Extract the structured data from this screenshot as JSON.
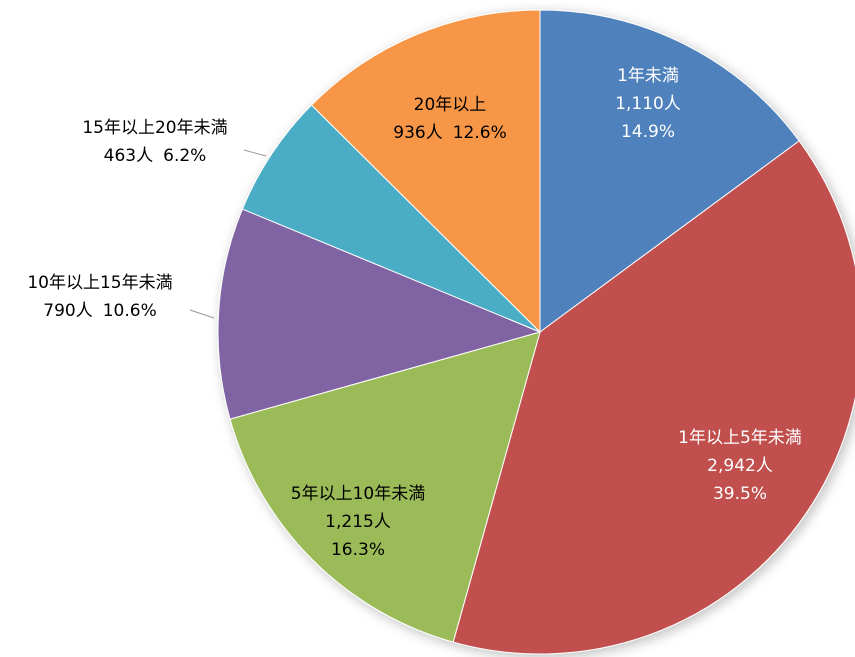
{
  "chart_data": {
    "type": "pie",
    "categories": [
      "1年未満",
      "1年以上5年未満",
      "5年以上10年未満",
      "10年以上15年未満",
      "15年以上20年未満",
      "20年以上"
    ],
    "values": [
      1110,
      2942,
      1215,
      790,
      463,
      936
    ],
    "value_labels": [
      "1,110人",
      "2,942人",
      "1,215人",
      "790人",
      "463人",
      "936人"
    ],
    "percentages": [
      14.9,
      39.5,
      16.3,
      10.6,
      6.2,
      12.6
    ],
    "percentage_labels": [
      "14.9%",
      "39.5%",
      "16.3%",
      "10.6%",
      "6.2%",
      "12.6%"
    ],
    "colors": [
      "#4f81bd",
      "#c0504d",
      "#9bbb59",
      "#8064a2",
      "#4bacc6",
      "#f79646"
    ]
  }
}
